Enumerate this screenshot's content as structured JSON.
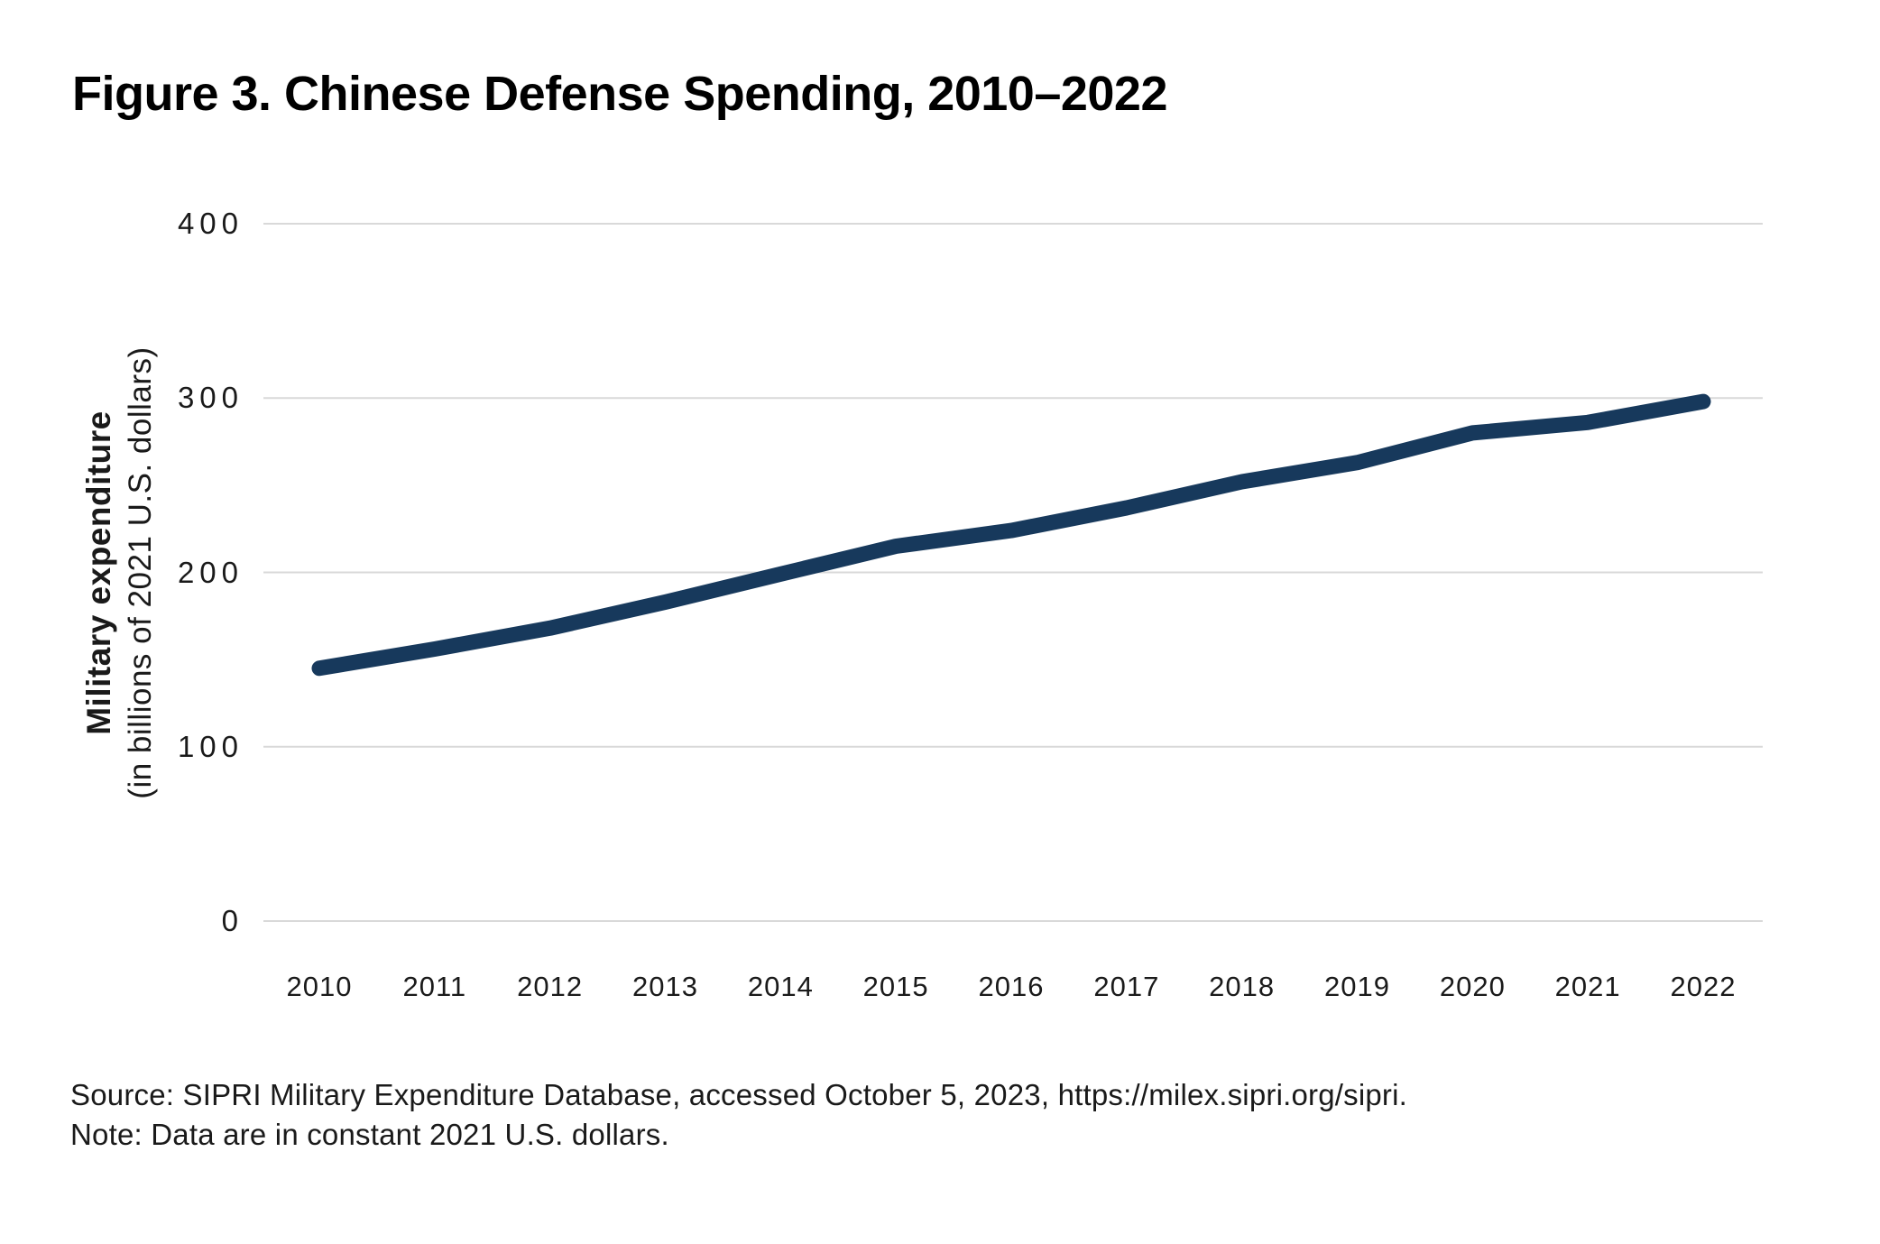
{
  "title": "Figure 3. Chinese Defense Spending, 2010–2022",
  "y_axis": {
    "title_bold": "Military expenditure",
    "title_sub": "(in billions of 2021 U.S. dollars)"
  },
  "caption": {
    "source_line": "Source: SIPRI Military Expenditure Database, accessed October 5, 2023, https://milex.sipri.org/sipri.",
    "note_line": "Note: Data are in constant 2021 U.S. dollars."
  },
  "colors": {
    "line": "#17395C",
    "gridline": "#D9D9D9",
    "text": "#1A1A1A"
  },
  "chart_data": {
    "type": "line",
    "title": "Figure 3. Chinese Defense Spending, 2010–2022",
    "x": [
      2010,
      2011,
      2012,
      2013,
      2014,
      2015,
      2016,
      2017,
      2018,
      2019,
      2020,
      2021,
      2022
    ],
    "series": [
      {
        "name": "Chinese defense spending",
        "values": [
          145,
          156,
          168,
          183,
          199,
          215,
          224,
          237,
          252,
          263,
          280,
          286,
          298
        ]
      }
    ],
    "xlabel": "",
    "ylabel": "Military expenditure (in billions of 2021 U.S. dollars)",
    "ylim": [
      0,
      400
    ],
    "yticks": [
      0,
      100,
      200,
      300,
      400
    ],
    "grid": true,
    "legend": false
  }
}
